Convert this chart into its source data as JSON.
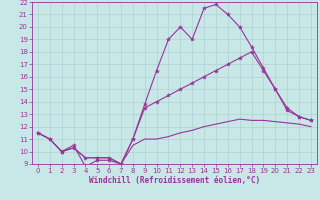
{
  "xlabel": "Windchill (Refroidissement éolien,°C)",
  "bg_color": "#c8e8e8",
  "line_color": "#993399",
  "grid_color": "#aacccc",
  "spine_color": "#993399",
  "xlim": [
    -0.5,
    23.5
  ],
  "ylim": [
    9,
    22
  ],
  "yticks": [
    9,
    10,
    11,
    12,
    13,
    14,
    15,
    16,
    17,
    18,
    19,
    20,
    21,
    22
  ],
  "xticks": [
    0,
    1,
    2,
    3,
    4,
    5,
    6,
    7,
    8,
    9,
    10,
    11,
    12,
    13,
    14,
    15,
    16,
    17,
    18,
    19,
    20,
    21,
    22,
    23
  ],
  "line1_x": [
    0,
    1,
    2,
    3,
    4,
    5,
    6,
    7,
    8,
    9,
    10,
    11,
    12,
    13,
    14,
    15,
    16,
    17,
    18,
    19,
    20,
    21,
    22,
    23
  ],
  "line1_y": [
    11.5,
    11.0,
    10.0,
    10.5,
    8.8,
    9.3,
    9.3,
    9.0,
    11.0,
    13.8,
    16.5,
    19.0,
    20.0,
    19.0,
    21.5,
    21.8,
    21.0,
    20.0,
    18.4,
    16.7,
    15.0,
    13.3,
    12.8,
    12.5
  ],
  "line2_x": [
    0,
    1,
    2,
    3,
    4,
    5,
    6,
    7,
    8,
    9,
    10,
    11,
    12,
    13,
    14,
    15,
    16,
    17,
    18,
    19,
    20,
    21,
    22,
    23
  ],
  "line2_y": [
    11.5,
    11.0,
    10.0,
    10.3,
    9.5,
    9.5,
    9.5,
    9.0,
    11.0,
    13.5,
    14.0,
    14.5,
    15.0,
    15.5,
    16.0,
    16.5,
    17.0,
    17.5,
    18.0,
    16.5,
    15.0,
    13.5,
    12.8,
    12.5
  ],
  "line3_x": [
    0,
    1,
    2,
    3,
    4,
    5,
    6,
    7,
    8,
    9,
    10,
    11,
    12,
    13,
    14,
    15,
    16,
    17,
    18,
    19,
    20,
    21,
    22,
    23
  ],
  "line3_y": [
    11.5,
    11.0,
    10.0,
    10.3,
    9.5,
    9.5,
    9.5,
    9.0,
    10.5,
    11.0,
    11.0,
    11.2,
    11.5,
    11.7,
    12.0,
    12.2,
    12.4,
    12.6,
    12.5,
    12.5,
    12.4,
    12.3,
    12.2,
    12.0
  ],
  "tick_fontsize": 5,
  "xlabel_fontsize": 5.5,
  "marker_size": 3,
  "linewidth": 0.8
}
